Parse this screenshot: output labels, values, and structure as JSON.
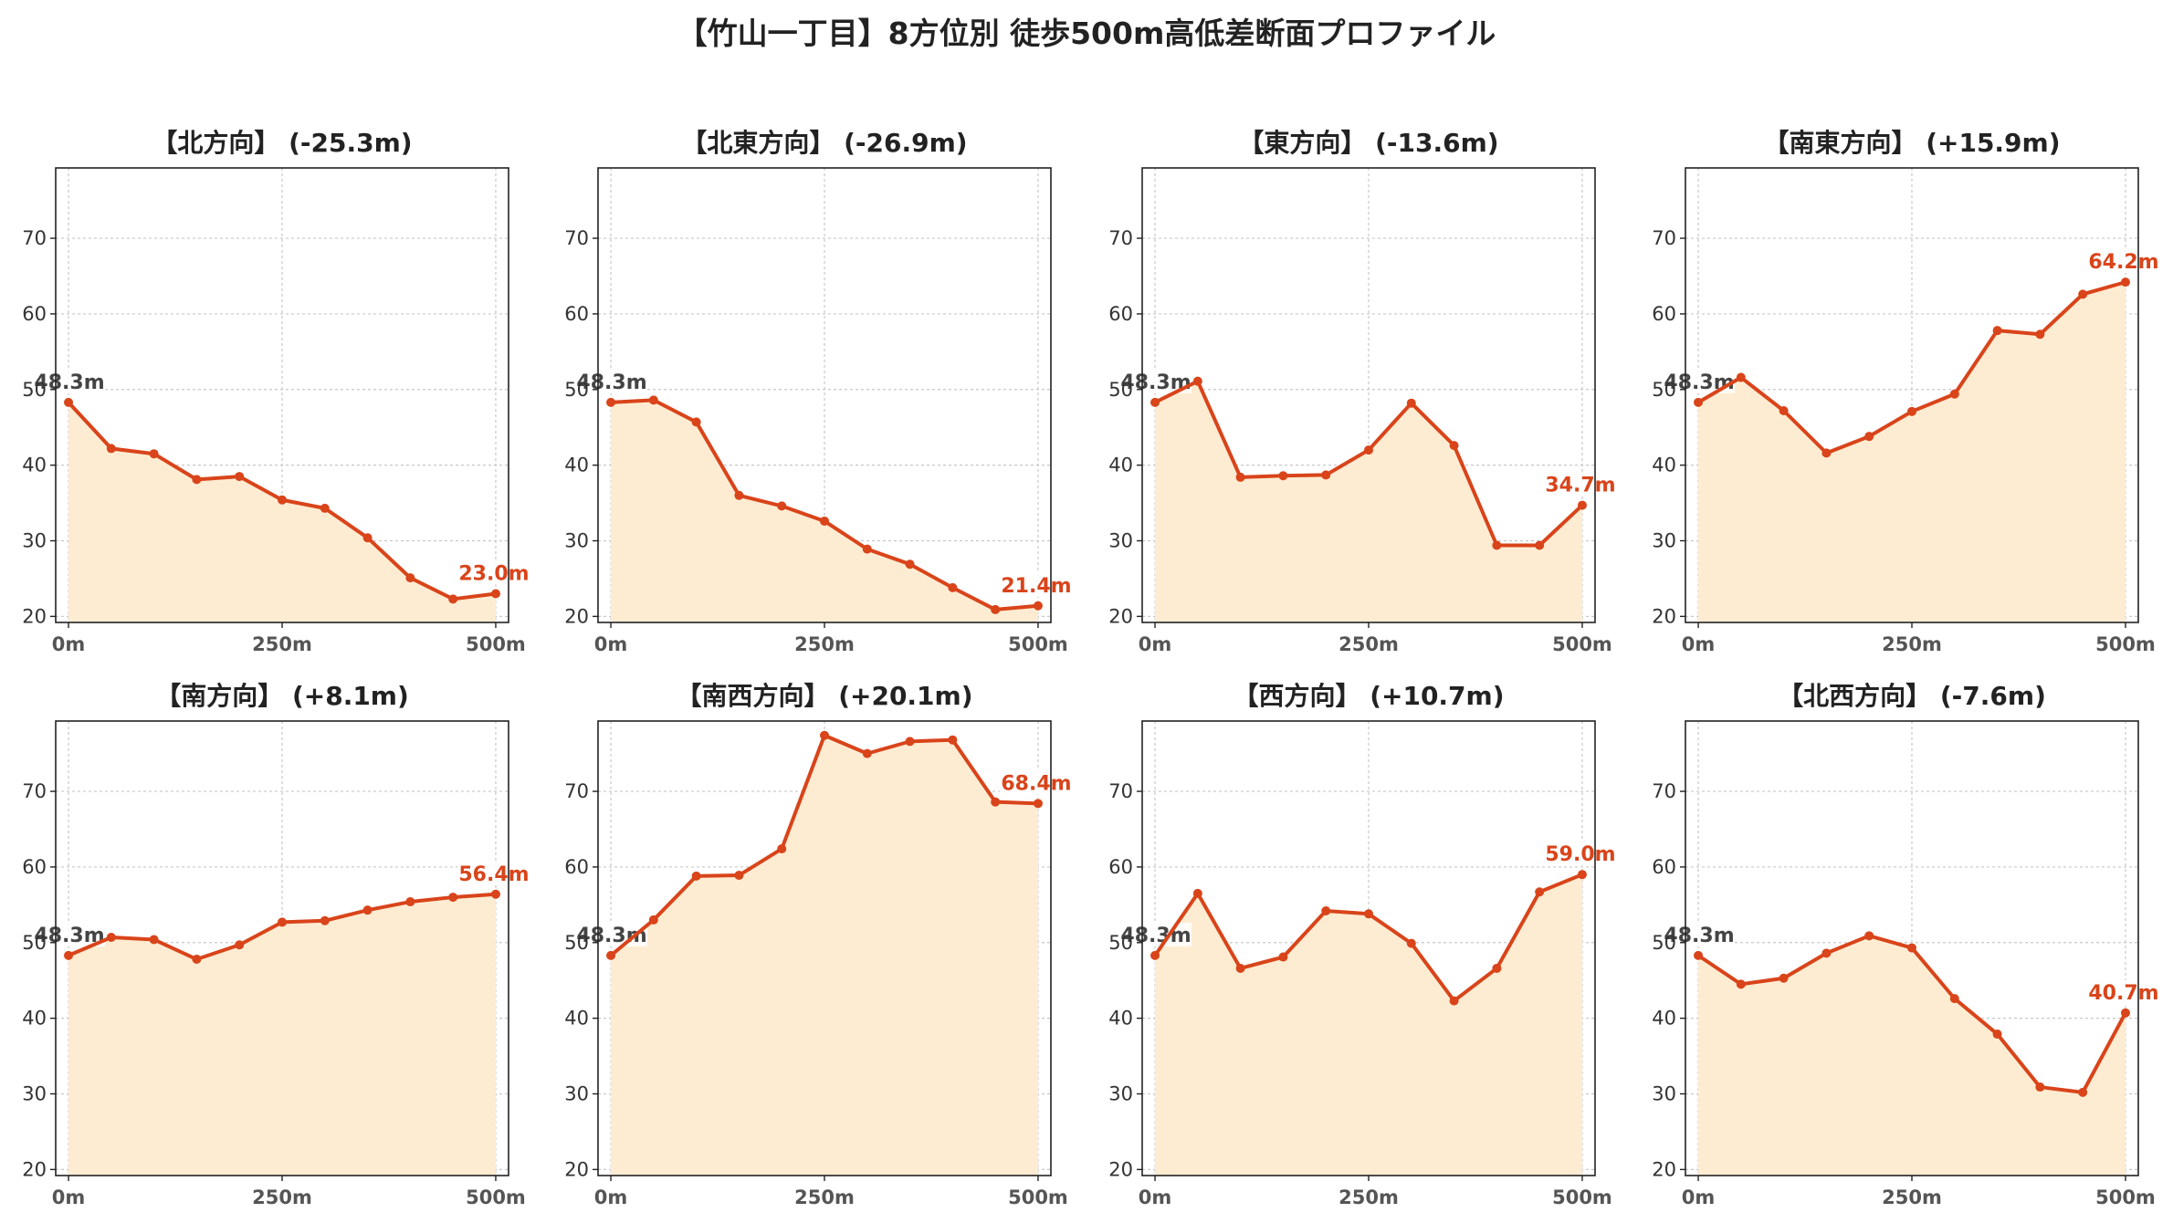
{
  "title": "【竹山一丁目】8方位別 徒歩500m高低差断面プロファイル",
  "colors": {
    "line": "#d9441a",
    "fill": "#feecd2",
    "grid": "#c8c8c8",
    "start_label": "#444444",
    "end_label": "#d9441a"
  },
  "chart_data": [
    {
      "type": "area",
      "title": "【北方向】 (-25.3m)",
      "x": [
        0,
        50,
        100,
        150,
        200,
        250,
        300,
        350,
        400,
        450,
        500
      ],
      "values": [
        48.3,
        42.2,
        41.5,
        38.1,
        38.5,
        35.4,
        34.3,
        30.4,
        25.1,
        22.3,
        23.0
      ],
      "xticks": [
        "0m",
        "250m",
        "500m"
      ],
      "yticks": [
        20,
        30,
        40,
        50,
        60,
        70
      ],
      "xlim": [
        -15,
        515
      ],
      "ylim": [
        19.2,
        79.3
      ],
      "start_label": "48.3m",
      "end_label": "23.0m",
      "grid": true
    },
    {
      "type": "area",
      "title": "【北東方向】 (-26.9m)",
      "x": [
        0,
        50,
        100,
        150,
        200,
        250,
        300,
        350,
        400,
        450,
        500
      ],
      "values": [
        48.3,
        48.6,
        45.7,
        36.0,
        34.6,
        32.6,
        28.9,
        26.9,
        23.8,
        20.9,
        21.4
      ],
      "xticks": [
        "0m",
        "250m",
        "500m"
      ],
      "yticks": [
        20,
        30,
        40,
        50,
        60,
        70
      ],
      "xlim": [
        -15,
        515
      ],
      "ylim": [
        19.2,
        79.3
      ],
      "start_label": "48.3m",
      "end_label": "21.4m",
      "grid": true
    },
    {
      "type": "area",
      "title": "【東方向】 (-13.6m)",
      "x": [
        0,
        50,
        100,
        150,
        200,
        250,
        300,
        350,
        400,
        450,
        500
      ],
      "values": [
        48.3,
        51.1,
        38.4,
        38.6,
        38.7,
        42.0,
        48.2,
        42.6,
        29.4,
        29.4,
        34.7
      ],
      "xticks": [
        "0m",
        "250m",
        "500m"
      ],
      "yticks": [
        20,
        30,
        40,
        50,
        60,
        70
      ],
      "xlim": [
        -15,
        515
      ],
      "ylim": [
        19.2,
        79.3
      ],
      "start_label": "48.3m",
      "end_label": "34.7m",
      "grid": true
    },
    {
      "type": "area",
      "title": "【南東方向】 (+15.9m)",
      "x": [
        0,
        50,
        100,
        150,
        200,
        250,
        300,
        350,
        400,
        450,
        500
      ],
      "values": [
        48.3,
        51.6,
        47.2,
        41.6,
        43.8,
        47.1,
        49.4,
        57.8,
        57.3,
        62.6,
        64.2
      ],
      "xticks": [
        "0m",
        "250m",
        "500m"
      ],
      "yticks": [
        20,
        30,
        40,
        50,
        60,
        70
      ],
      "xlim": [
        -15,
        515
      ],
      "ylim": [
        19.2,
        79.3
      ],
      "start_label": "48.3m",
      "end_label": "64.2m",
      "grid": true
    },
    {
      "type": "area",
      "title": "【南方向】 (+8.1m)",
      "x": [
        0,
        50,
        100,
        150,
        200,
        250,
        300,
        350,
        400,
        450,
        500
      ],
      "values": [
        48.3,
        50.7,
        50.4,
        47.8,
        49.7,
        52.7,
        52.9,
        54.3,
        55.4,
        56.0,
        56.4
      ],
      "xticks": [
        "0m",
        "250m",
        "500m"
      ],
      "yticks": [
        20,
        30,
        40,
        50,
        60,
        70
      ],
      "xlim": [
        -15,
        515
      ],
      "ylim": [
        19.2,
        79.3
      ],
      "start_label": "48.3m",
      "end_label": "56.4m",
      "grid": true
    },
    {
      "type": "area",
      "title": "【南西方向】 (+20.1m)",
      "x": [
        0,
        50,
        100,
        150,
        200,
        250,
        300,
        350,
        400,
        450,
        500
      ],
      "values": [
        48.3,
        53.0,
        58.8,
        58.9,
        62.4,
        77.4,
        75.0,
        76.6,
        76.8,
        68.6,
        68.4
      ],
      "xticks": [
        "0m",
        "250m",
        "500m"
      ],
      "yticks": [
        20,
        30,
        40,
        50,
        60,
        70
      ],
      "xlim": [
        -15,
        515
      ],
      "ylim": [
        19.2,
        79.3
      ],
      "start_label": "48.3m",
      "end_label": "68.4m",
      "grid": true
    },
    {
      "type": "area",
      "title": "【西方向】 (+10.7m)",
      "x": [
        0,
        50,
        100,
        150,
        200,
        250,
        300,
        350,
        400,
        450,
        500
      ],
      "values": [
        48.3,
        56.5,
        46.6,
        48.1,
        54.2,
        53.8,
        49.9,
        42.3,
        46.6,
        56.7,
        59.0
      ],
      "xticks": [
        "0m",
        "250m",
        "500m"
      ],
      "yticks": [
        20,
        30,
        40,
        50,
        60,
        70
      ],
      "xlim": [
        -15,
        515
      ],
      "ylim": [
        19.2,
        79.3
      ],
      "start_label": "48.3m",
      "end_label": "59.0m",
      "grid": true
    },
    {
      "type": "area",
      "title": "【北西方向】 (-7.6m)",
      "x": [
        0,
        50,
        100,
        150,
        200,
        250,
        300,
        350,
        400,
        450,
        500
      ],
      "values": [
        48.3,
        44.5,
        45.3,
        48.6,
        50.9,
        49.3,
        42.6,
        37.9,
        30.9,
        30.2,
        40.7
      ],
      "xticks": [
        "0m",
        "250m",
        "500m"
      ],
      "yticks": [
        20,
        30,
        40,
        50,
        60,
        70
      ],
      "xlim": [
        -15,
        515
      ],
      "ylim": [
        19.2,
        79.3
      ],
      "start_label": "48.3m",
      "end_label": "40.7m",
      "grid": true
    }
  ]
}
